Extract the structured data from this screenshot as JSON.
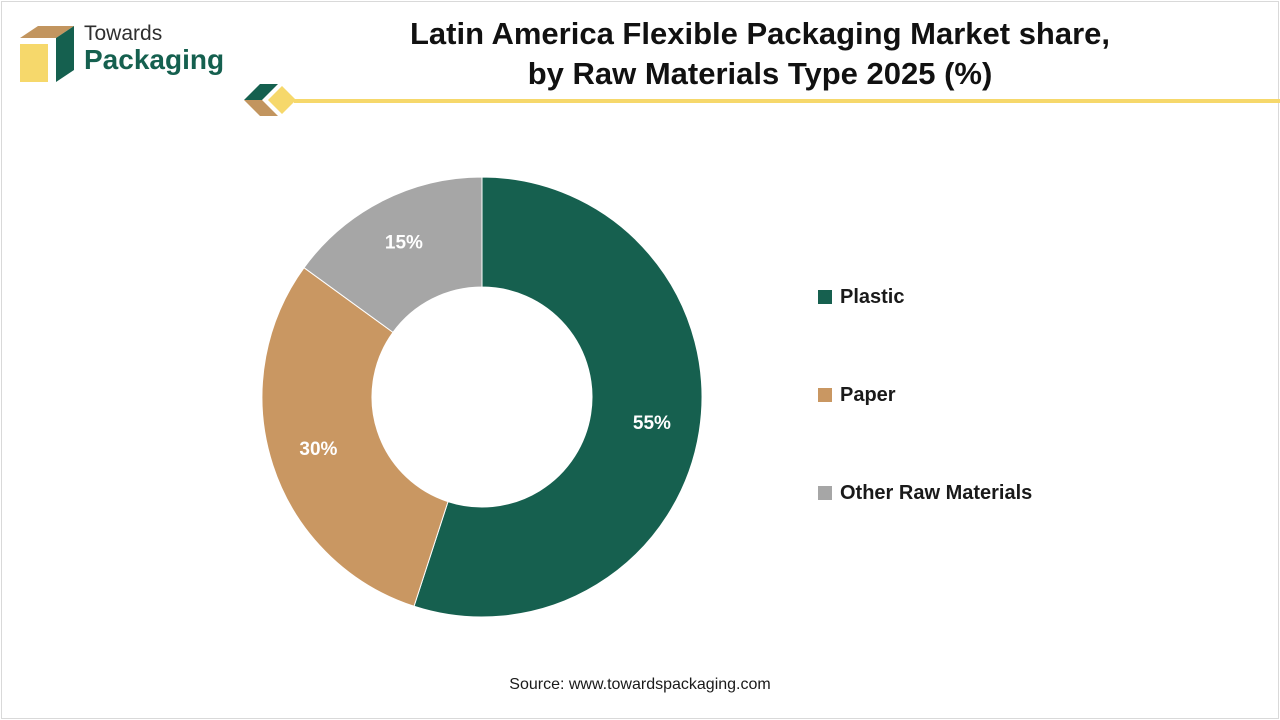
{
  "brand": {
    "name_top": "Towards",
    "name_bottom": "Packaging"
  },
  "colors": {
    "plastic": "#16604f",
    "paper": "#c99762",
    "other": "#a6a6a6",
    "accent_yellow": "#f6d86b",
    "brand_green": "#15604f",
    "brand_tan": "#c2955f"
  },
  "chart_data": {
    "type": "pie",
    "donut": true,
    "title": "Latin America Flexible Packaging Market share, by Raw Materials Type 2025 (%)",
    "title_line1": "Latin America Flexible Packaging Market share,",
    "title_line2": "by Raw Materials Type 2025 (%)",
    "categories": [
      "Plastic",
      "Paper",
      "Other Raw Materials"
    ],
    "values": [
      55,
      30,
      15
    ],
    "value_labels": [
      "55%",
      "30%",
      "15%"
    ],
    "legend_position": "right"
  },
  "source": "Source: www.towardspackaging.com"
}
